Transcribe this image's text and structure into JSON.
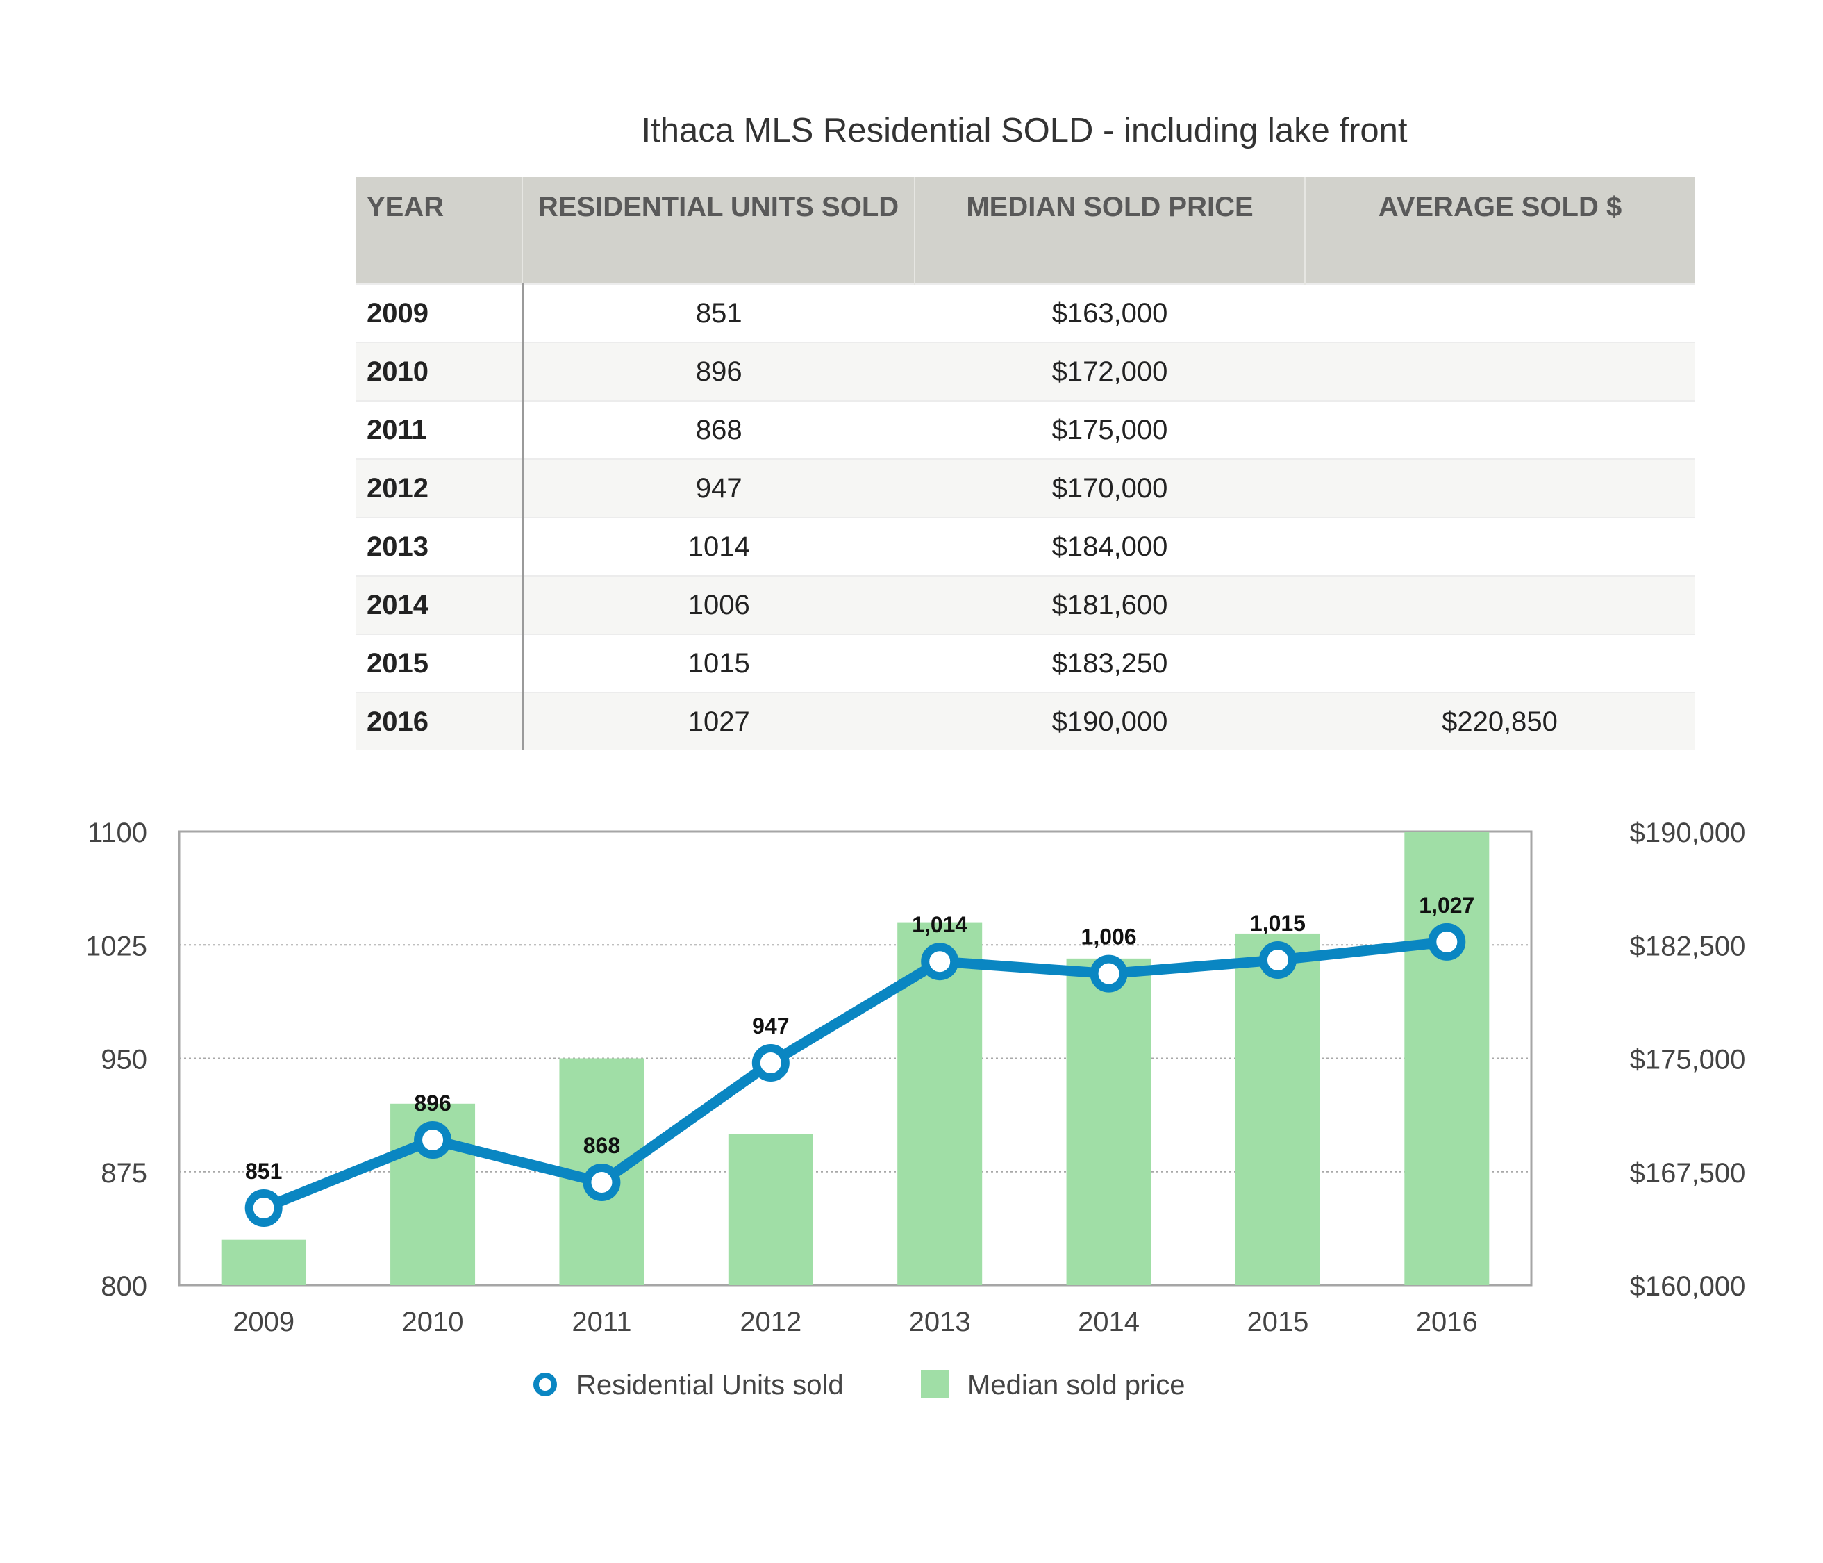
{
  "table": {
    "title": "Ithaca MLS Residential SOLD - including lake front",
    "headers": [
      "YEAR",
      "RESIDENTIAL UNITS SOLD",
      "MEDIAN SOLD PRICE",
      "AVERAGE SOLD $"
    ],
    "rows": [
      {
        "year": "2009",
        "units": "851",
        "median": "$163,000",
        "average": ""
      },
      {
        "year": "2010",
        "units": "896",
        "median": "$172,000",
        "average": ""
      },
      {
        "year": "2011",
        "units": "868",
        "median": "$175,000",
        "average": ""
      },
      {
        "year": "2012",
        "units": "947",
        "median": "$170,000",
        "average": ""
      },
      {
        "year": "2013",
        "units": "1014",
        "median": "$184,000",
        "average": ""
      },
      {
        "year": "2014",
        "units": "1006",
        "median": "$181,600",
        "average": ""
      },
      {
        "year": "2015",
        "units": "1015",
        "median": "$183,250",
        "average": ""
      },
      {
        "year": "2016",
        "units": "1027",
        "median": "$190,000",
        "average": "$220,850"
      }
    ]
  },
  "chart_data": {
    "type": "bar",
    "categories": [
      "2009",
      "2010",
      "2011",
      "2012",
      "2013",
      "2014",
      "2015",
      "2016"
    ],
    "series": [
      {
        "name": "Residential Units sold",
        "type": "line",
        "axis": "left",
        "values": [
          851,
          896,
          868,
          947,
          1014,
          1006,
          1015,
          1027
        ],
        "labels": [
          "851",
          "896",
          "868",
          "947",
          "1,014",
          "1,006",
          "1,015",
          "1,027"
        ]
      },
      {
        "name": "Median sold price",
        "type": "bar",
        "axis": "right",
        "values": [
          163000,
          172000,
          175000,
          170000,
          184000,
          181600,
          183250,
          190000
        ],
        "labels": [
          "$163,000",
          "$172,000",
          "$175,000",
          "$170,000",
          "$184,000",
          "$181,600",
          "$183,250",
          "$190,000"
        ]
      }
    ],
    "y_left": {
      "range": [
        800,
        1100
      ],
      "ticks": [
        "800",
        "875",
        "950",
        "1025",
        "1100"
      ]
    },
    "y_right": {
      "range": [
        160000,
        190000
      ],
      "ticks": [
        "$160,000",
        "$167,500",
        "$175,000",
        "$182,500",
        "$190,000"
      ]
    },
    "grid": "horizontal dotted",
    "legend": "bottom-center",
    "colors": {
      "line": "#0a86c2",
      "bar": "#a0dea6",
      "frame": "#a6a6a6"
    }
  }
}
